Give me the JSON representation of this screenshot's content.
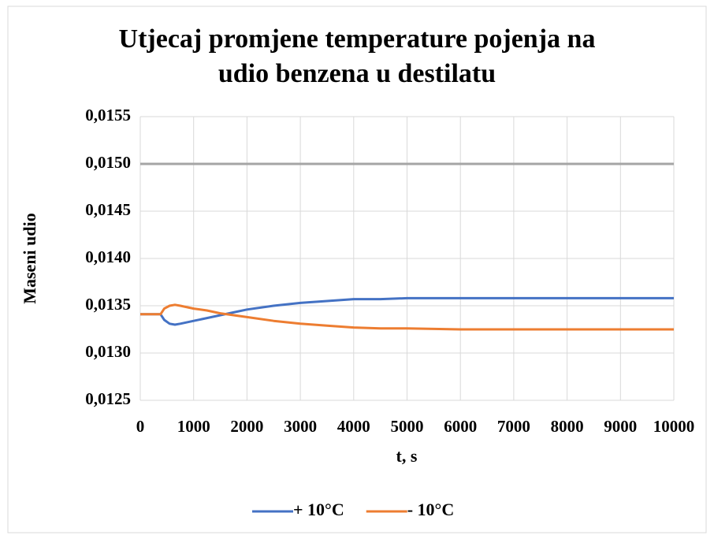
{
  "chart_data": {
    "type": "line",
    "title": [
      "Utjecaj promjene temperature pojenja na",
      "udio benzena u destilatu"
    ],
    "x_label": "t, s",
    "y_label": "Maseni udio",
    "x": [
      0,
      200,
      380,
      450,
      550,
      650,
      750,
      1000,
      1250,
      1500,
      1750,
      2000,
      2500,
      3000,
      3500,
      4000,
      4500,
      5000,
      6000,
      7000,
      8000,
      9000,
      10000
    ],
    "series": [
      {
        "name": "+ 10°C",
        "color": "#4472c4",
        "values": [
          0.01341,
          0.01341,
          0.01341,
          0.01335,
          0.01331,
          0.0133,
          0.01331,
          0.01334,
          0.01337,
          0.0134,
          0.01343,
          0.01346,
          0.0135,
          0.01353,
          0.01355,
          0.01357,
          0.01357,
          0.01358,
          0.01358,
          0.01358,
          0.01358,
          0.01358,
          0.01358
        ]
      },
      {
        "name": "- 10°C",
        "color": "#ed7d31",
        "values": [
          0.01341,
          0.01341,
          0.01341,
          0.01347,
          0.0135,
          0.01351,
          0.0135,
          0.01347,
          0.01345,
          0.01342,
          0.0134,
          0.01338,
          0.01334,
          0.01331,
          0.01329,
          0.01327,
          0.01326,
          0.01326,
          0.01325,
          0.01325,
          0.01325,
          0.01325,
          0.01325
        ]
      }
    ],
    "hlines": [
      {
        "value": 0.015,
        "color": "#a5a5a5"
      }
    ],
    "xlim": [
      0,
      10000
    ],
    "xticks": [
      0,
      1000,
      2000,
      3000,
      4000,
      5000,
      6000,
      7000,
      8000,
      9000,
      10000
    ],
    "ylim": [
      0.0125,
      0.0155
    ],
    "yticks": [
      {
        "value": 0.0125,
        "label": "0,0125"
      },
      {
        "value": 0.013,
        "label": "0,0130"
      },
      {
        "value": 0.0135,
        "label": "0,0135"
      },
      {
        "value": 0.014,
        "label": "0,0140"
      },
      {
        "value": 0.0145,
        "label": "0,0145"
      },
      {
        "value": 0.015,
        "label": "0,0150"
      },
      {
        "value": 0.0155,
        "label": "0,0155"
      }
    ],
    "grid": true,
    "legend": "bottom"
  }
}
